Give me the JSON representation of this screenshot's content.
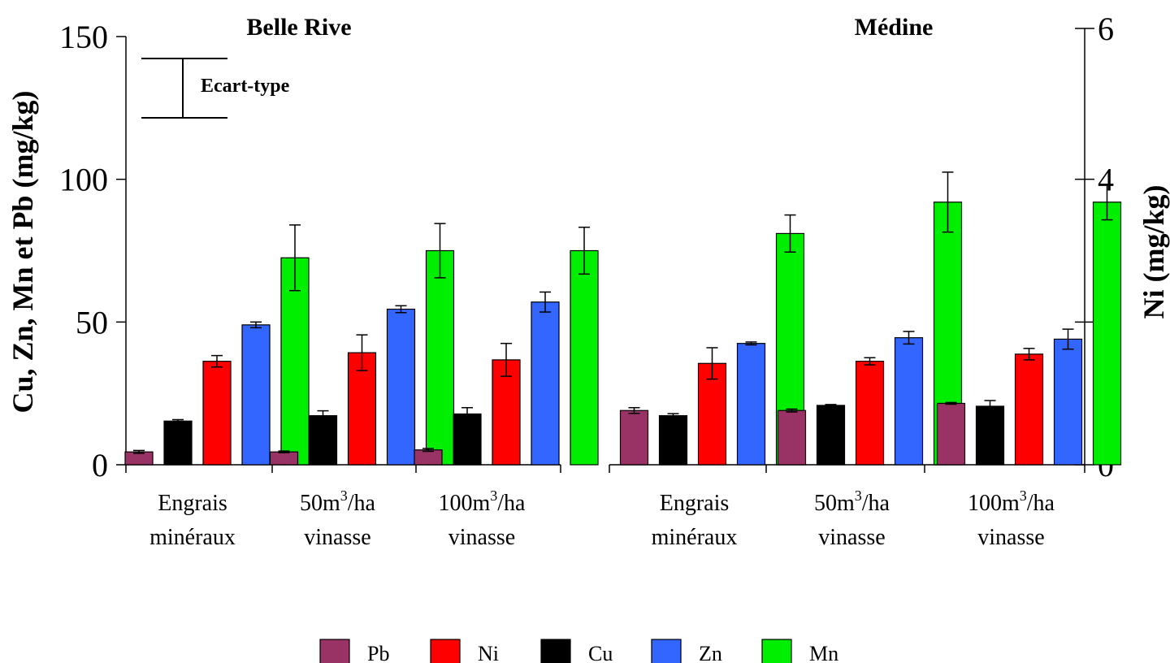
{
  "chart_data": {
    "type": "bar",
    "y_left": {
      "label": "Cu, Zn, Mn et Pb (mg/kg)",
      "ylim": [
        0,
        150
      ],
      "ticks": [
        "0",
        "50",
        "100",
        "150"
      ]
    },
    "y_right": {
      "label": "Ni  (mg/kg)",
      "ylim": [
        0,
        6
      ],
      "ticks": [
        "0",
        "2",
        "4",
        "6"
      ]
    },
    "annotation": "Ecart-type",
    "legend": {
      "position": "bottom",
      "items": [
        {
          "key": "Pb",
          "label": "Pb",
          "color": "#993366"
        },
        {
          "key": "Ni",
          "label": "Ni",
          "color": "#ff0000"
        },
        {
          "key": "Cu",
          "label": "Cu",
          "color": "#000000"
        },
        {
          "key": "Zn",
          "label": "Zn",
          "color": "#3366ff"
        },
        {
          "key": "Mn",
          "label": "Mn",
          "color": "#00ee00"
        }
      ]
    },
    "panels": [
      {
        "title": "Belle Rive",
        "categories": [
          {
            "line1": "Engrais",
            "line2": "minéraux"
          },
          {
            "line1": "50m",
            "sup": "3",
            "line1b": "/ha",
            "line2": "vinasse"
          },
          {
            "line1": "100m",
            "sup": "3",
            "line1b": "/ha",
            "line2": "vinasse"
          }
        ],
        "bar_order": [
          "Pb",
          "Cu",
          "Ni",
          "Zn",
          "Mn"
        ],
        "series": [
          {
            "name": "Pb",
            "axis": "left",
            "values": [
              4.5,
              4.5,
              5.2
            ],
            "errors": [
              0.5,
              0.3,
              0.5
            ]
          },
          {
            "name": "Cu",
            "axis": "left",
            "values": [
              15.3,
              17.2,
              17.8
            ],
            "errors": [
              0.5,
              1.7,
              2.2
            ]
          },
          {
            "name": "Ni",
            "axis": "right",
            "values": [
              1.45,
              1.57,
              1.47
            ],
            "errors": [
              0.08,
              0.25,
              0.23
            ]
          },
          {
            "name": "Zn",
            "axis": "left",
            "values": [
              49,
              54.5,
              57
            ],
            "errors": [
              1,
              1.2,
              3.5
            ]
          },
          {
            "name": "Mn",
            "axis": "left",
            "values": [
              72.5,
              75,
              75
            ],
            "errors": [
              11.5,
              9.5,
              8.2
            ]
          }
        ]
      },
      {
        "title": "Médine",
        "categories": [
          {
            "line1": "Engrais",
            "line2": "minéraux"
          },
          {
            "line1": "50m",
            "sup": "3",
            "line1b": "/ha",
            "line2": "vinasse"
          },
          {
            "line1": "100m",
            "sup": "3",
            "line1b": "/ha",
            "line2": "vinasse"
          }
        ],
        "bar_order": [
          "Pb",
          "Cu",
          "Ni",
          "Zn",
          "Mn"
        ],
        "series": [
          {
            "name": "Pb",
            "axis": "left",
            "values": [
              19,
              19,
              21.5
            ],
            "errors": [
              1,
              0.5,
              0.3
            ]
          },
          {
            "name": "Cu",
            "axis": "left",
            "values": [
              17.2,
              20.8,
              20.5
            ],
            "errors": [
              0.7,
              0.3,
              2
            ]
          },
          {
            "name": "Ni",
            "axis": "right",
            "values": [
              1.42,
              1.45,
              1.55
            ],
            "errors": [
              0.22,
              0.05,
              0.08
            ]
          },
          {
            "name": "Zn",
            "axis": "left",
            "values": [
              42.5,
              44.5,
              44
            ],
            "errors": [
              0.5,
              2.2,
              3.5
            ]
          },
          {
            "name": "Mn",
            "axis": "left",
            "values": [
              81,
              92,
              92
            ],
            "errors": [
              6.5,
              10.5,
              6.2
            ]
          }
        ]
      }
    ]
  }
}
